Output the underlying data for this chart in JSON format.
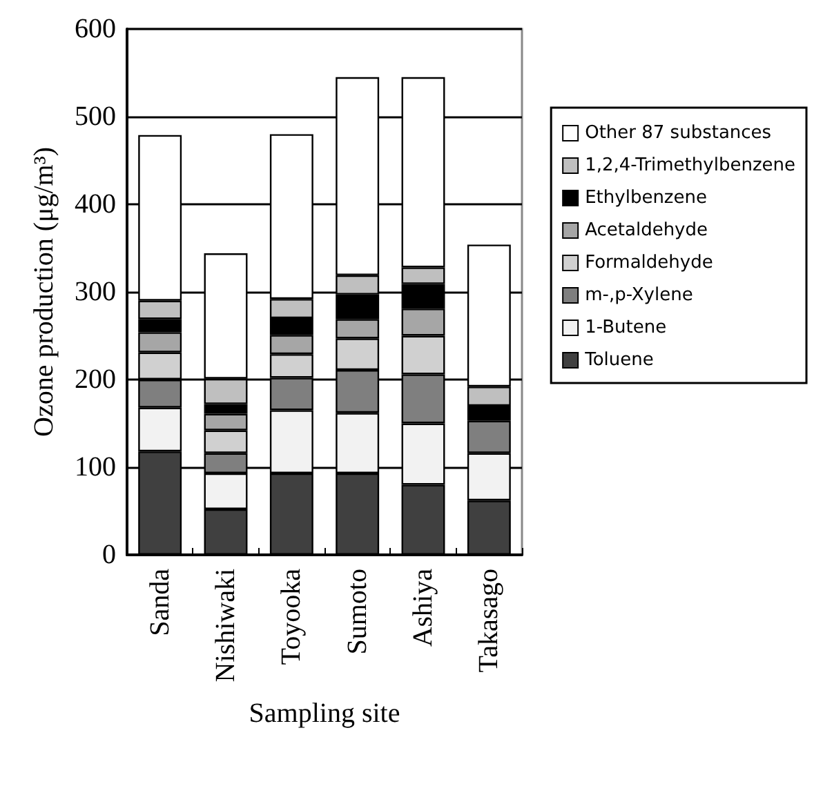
{
  "chart_data": {
    "type": "bar",
    "stacked": true,
    "xlabel": "Sampling site",
    "ylabel": "Ozone production (μg/m³)",
    "categories": [
      "Sanda",
      "Nishiwaki",
      "Toyooka",
      "Sumoto",
      "Ashiya",
      "Takasago"
    ],
    "series": [
      {
        "name": "Toluene",
        "color": "#404040",
        "values": [
          118,
          52,
          93,
          93,
          80,
          62
        ]
      },
      {
        "name": "1-Butene",
        "color": "#f2f2f2",
        "values": [
          50,
          41,
          72,
          69,
          70,
          54
        ]
      },
      {
        "name": "m-,p-Xylene",
        "color": "#7f7f7f",
        "values": [
          32,
          23,
          37,
          49,
          56,
          37
        ]
      },
      {
        "name": "Formaldehyde",
        "color": "#d0d0d0",
        "values": [
          31,
          26,
          27,
          36,
          44,
          null
        ]
      },
      {
        "name": "Acetaldehyde",
        "color": "#a6a6a6",
        "values": [
          23,
          19,
          22,
          22,
          31,
          null
        ]
      },
      {
        "name": "Ethylbenzene",
        "color": "#000000",
        "values": [
          15,
          11,
          19,
          28,
          28,
          17
        ]
      },
      {
        "name": "1,2,4-Trimethylbenzene",
        "color": "#bfbfbf",
        "values": [
          21,
          29,
          22,
          22,
          19,
          22
        ]
      },
      {
        "name": "Other 87 substances",
        "color": "#ffffff",
        "values": [
          189,
          143,
          188,
          226,
          217,
          162
        ]
      }
    ],
    "ylim": [
      0,
      600
    ],
    "yticks": [
      0,
      100,
      200,
      300,
      400,
      500,
      600
    ],
    "grid": "y",
    "legend": "right"
  }
}
